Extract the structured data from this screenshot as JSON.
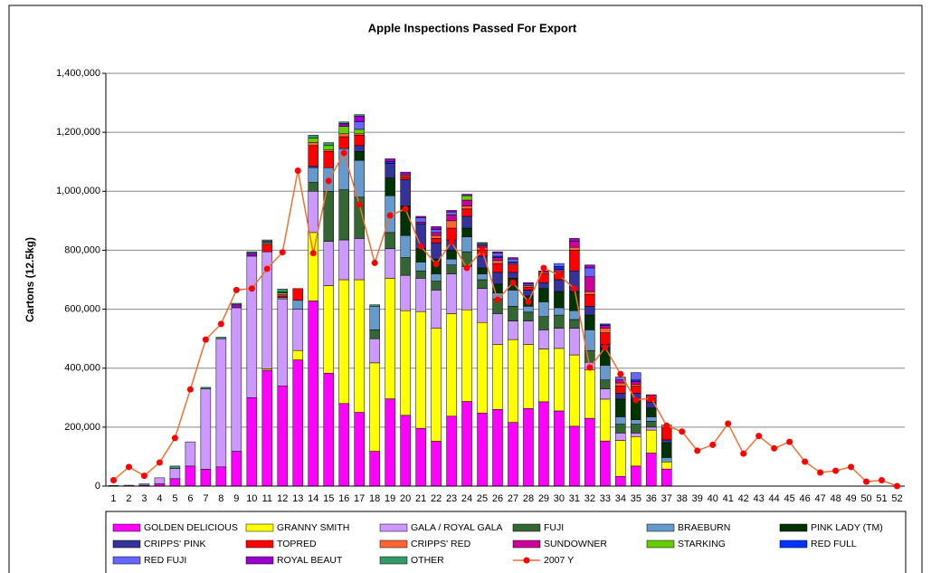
{
  "chart_data": {
    "type": "bar",
    "stacked": true,
    "title": "Apple Inspections Passed For Export",
    "y_label": "Cartons (12.5kg)",
    "categories": [
      "1",
      "2",
      "3",
      "4",
      "5",
      "6",
      "7",
      "8",
      "9",
      "10",
      "11",
      "12",
      "13",
      "14",
      "15",
      "16",
      "17",
      "18",
      "19",
      "20",
      "21",
      "22",
      "23",
      "24",
      "25",
      "26",
      "27",
      "28",
      "29",
      "30",
      "31",
      "32",
      "33",
      "34",
      "35",
      "36",
      "37",
      "38",
      "39",
      "40",
      "41",
      "42",
      "43",
      "44",
      "45",
      "46",
      "47",
      "48",
      "49",
      "50",
      "51",
      "52"
    ],
    "ylim": [
      0,
      1400000
    ],
    "yticks": [
      0,
      {
        "value": 200000,
        "label": "200,000"
      },
      {
        "value": 400000,
        "label": "400,000"
      },
      {
        "value": 600000,
        "label": "600,000"
      },
      {
        "value": 800000,
        "label": "800,000"
      },
      {
        "value": 1000000,
        "label": "1,000,000"
      },
      {
        "value": 1200000,
        "label": "1,200,000"
      },
      {
        "value": 1400000,
        "label": "1,400,000"
      }
    ],
    "grid": true,
    "legend": "bottom",
    "series": [
      {
        "name": "GOLDEN DELICIOUS",
        "color": "#ff00ff",
        "values": [
          2000,
          1000,
          3000,
          8000,
          25000,
          68000,
          57000,
          65000,
          118000,
          300000,
          393000,
          340000,
          428000,
          628000,
          383000,
          280000,
          250000,
          118000,
          296000,
          240000,
          196000,
          152000,
          237000,
          287000,
          248000,
          260000,
          216000,
          263000,
          286000,
          255000,
          203000,
          230000,
          153000,
          33000,
          68000,
          112000,
          58000,
          0,
          0,
          0,
          0,
          0,
          0,
          0,
          0,
          0,
          0,
          0,
          0,
          0,
          0,
          0
        ]
      },
      {
        "name": "GRANNY SMITH",
        "color": "#ffff00",
        "values": [
          0,
          0,
          0,
          0,
          0,
          0,
          0,
          0,
          0,
          0,
          5000,
          0,
          32000,
          232000,
          297000,
          420000,
          450000,
          300000,
          409000,
          355000,
          396000,
          383000,
          348000,
          311000,
          307000,
          220000,
          281000,
          217000,
          179000,
          212000,
          242000,
          165000,
          142000,
          122000,
          100000,
          78000,
          24000,
          0,
          0,
          0,
          0,
          0,
          0,
          0,
          0,
          0,
          0,
          0,
          0,
          0,
          0,
          0
        ]
      },
      {
        "name": "GALA / ROYAL GALA",
        "color": "#cc99ff",
        "values": [
          0,
          2000,
          5000,
          20000,
          35000,
          82000,
          273000,
          435000,
          487000,
          480000,
          397000,
          295000,
          140000,
          140000,
          150000,
          135000,
          140000,
          82000,
          100000,
          120000,
          113000,
          130000,
          135000,
          147000,
          115000,
          105000,
          63000,
          80000,
          65000,
          68000,
          90000,
          25000,
          35000,
          25000,
          12000,
          10000,
          0,
          0,
          0,
          0,
          0,
          0,
          0,
          0,
          0,
          0,
          0,
          0,
          0,
          0,
          0,
          0
        ]
      },
      {
        "name": "FUJI",
        "color": "#336633",
        "values": [
          0,
          0,
          0,
          0,
          0,
          0,
          0,
          0,
          0,
          0,
          0,
          0,
          0,
          30000,
          170000,
          170000,
          140000,
          30000,
          55000,
          60000,
          25000,
          30000,
          30000,
          50000,
          30000,
          50000,
          50000,
          30000,
          45000,
          45000,
          30000,
          40000,
          30000,
          30000,
          30000,
          20000,
          0,
          0,
          0,
          0,
          0,
          0,
          0,
          0,
          0,
          0,
          0,
          0,
          0,
          0,
          0,
          0
        ]
      },
      {
        "name": "BRAEBURN",
        "color": "#6699cc",
        "values": [
          0,
          0,
          0,
          0,
          0,
          0,
          0,
          0,
          0,
          0,
          0,
          5000,
          30000,
          50000,
          80000,
          140000,
          125000,
          80000,
          125000,
          75000,
          30000,
          25000,
          20000,
          50000,
          20000,
          20000,
          55000,
          20000,
          50000,
          25000,
          30000,
          70000,
          50000,
          25000,
          15000,
          15000,
          15000,
          0,
          0,
          0,
          0,
          0,
          0,
          0,
          0,
          0,
          0,
          0,
          0,
          0,
          0,
          0
        ]
      },
      {
        "name": "PINK LADY (TM)",
        "color": "#003300",
        "values": [
          0,
          0,
          0,
          0,
          0,
          0,
          0,
          0,
          0,
          0,
          0,
          0,
          0,
          0,
          0,
          0,
          30000,
          0,
          60000,
          100000,
          45000,
          50000,
          30000,
          30000,
          20000,
          30000,
          40000,
          35000,
          45000,
          55000,
          65000,
          50000,
          60000,
          60000,
          70000,
          30000,
          50000,
          0,
          0,
          0,
          0,
          0,
          0,
          0,
          0,
          0,
          0,
          0,
          0,
          0,
          0,
          0
        ]
      },
      {
        "name": "CRIPPS' PINK",
        "color": "#333399",
        "values": [
          0,
          0,
          0,
          0,
          0,
          0,
          0,
          0,
          0,
          0,
          0,
          0,
          0,
          5000,
          0,
          0,
          20000,
          0,
          50000,
          90000,
          85000,
          55000,
          35000,
          40000,
          40000,
          40000,
          20000,
          20000,
          20000,
          40000,
          70000,
          30000,
          10000,
          20000,
          20000,
          20000,
          10000,
          0,
          0,
          0,
          0,
          0,
          0,
          0,
          0,
          0,
          0,
          0,
          0,
          0,
          0,
          0
        ]
      },
      {
        "name": "TOPRED",
        "color": "#ff0000",
        "values": [
          0,
          0,
          0,
          0,
          0,
          0,
          0,
          0,
          0,
          0,
          25000,
          5000,
          40000,
          70000,
          55000,
          40000,
          35000,
          0,
          0,
          10000,
          0,
          15000,
          40000,
          25000,
          20000,
          30000,
          25000,
          10000,
          30000,
          25000,
          70000,
          40000,
          40000,
          25000,
          25000,
          15000,
          40000,
          0,
          0,
          0,
          0,
          0,
          0,
          0,
          0,
          0,
          0,
          0,
          0,
          0,
          0,
          0
        ]
      },
      {
        "name": "CRIPPS' RED",
        "color": "#ff6633",
        "values": [
          0,
          0,
          0,
          0,
          0,
          0,
          0,
          0,
          0,
          0,
          0,
          5000,
          0,
          10000,
          5000,
          10000,
          5000,
          0,
          0,
          5000,
          0,
          10000,
          25000,
          10000,
          10000,
          10000,
          5000,
          5000,
          5000,
          5000,
          10000,
          10000,
          15000,
          10000,
          5000,
          5000,
          10000,
          0,
          0,
          0,
          0,
          0,
          0,
          0,
          0,
          0,
          0,
          0,
          0,
          0,
          0,
          0
        ]
      },
      {
        "name": "SUNDOWNER",
        "color": "#cc0099",
        "values": [
          0,
          0,
          0,
          0,
          0,
          0,
          0,
          0,
          0,
          0,
          0,
          0,
          0,
          0,
          0,
          0,
          0,
          0,
          0,
          0,
          5000,
          10000,
          20000,
          20000,
          5000,
          10000,
          0,
          0,
          5000,
          5000,
          20000,
          50000,
          10000,
          10000,
          10000,
          5000,
          0,
          0,
          0,
          0,
          0,
          0,
          0,
          0,
          0,
          0,
          0,
          0,
          0,
          0,
          0,
          0
        ]
      },
      {
        "name": "STARKING",
        "color": "#66cc00",
        "values": [
          0,
          0,
          0,
          0,
          0,
          0,
          0,
          0,
          0,
          0,
          5000,
          5000,
          0,
          15000,
          15000,
          25000,
          15000,
          0,
          0,
          0,
          0,
          0,
          0,
          15000,
          3000,
          0,
          0,
          0,
          0,
          0,
          0,
          0,
          0,
          0,
          0,
          0,
          0,
          0,
          0,
          0,
          0,
          0,
          0,
          0,
          0,
          0,
          0,
          0,
          0,
          0,
          0,
          0
        ]
      },
      {
        "name": "RED FULL",
        "color": "#0033ff",
        "values": [
          0,
          0,
          0,
          0,
          0,
          0,
          0,
          0,
          0,
          0,
          0,
          0,
          0,
          0,
          0,
          0,
          0,
          0,
          5000,
          0,
          0,
          0,
          0,
          0,
          0,
          5000,
          5000,
          0,
          0,
          10000,
          0,
          0,
          5000,
          0,
          5000,
          0,
          0,
          0,
          0,
          0,
          0,
          0,
          0,
          0,
          0,
          0,
          0,
          0,
          0,
          0,
          0,
          0
        ]
      },
      {
        "name": "RED FUJI",
        "color": "#6666ff",
        "values": [
          0,
          0,
          0,
          0,
          0,
          0,
          0,
          0,
          0,
          0,
          0,
          0,
          0,
          0,
          0,
          0,
          25000,
          0,
          0,
          0,
          15000,
          10000,
          10000,
          0,
          5000,
          10000,
          10000,
          5000,
          0,
          10000,
          0,
          30000,
          0,
          10000,
          25000,
          0,
          0,
          0,
          0,
          0,
          0,
          0,
          0,
          0,
          0,
          0,
          0,
          0,
          0,
          0,
          0,
          0
        ]
      },
      {
        "name": "ROYAL BEAUT",
        "color": "#9900cc",
        "values": [
          0,
          0,
          0,
          0,
          0,
          0,
          0,
          0,
          10000,
          10000,
          5000,
          3000,
          0,
          0,
          0,
          10000,
          20000,
          0,
          10000,
          10000,
          5000,
          10000,
          5000,
          5000,
          0,
          5000,
          5000,
          5000,
          0,
          0,
          10000,
          10000,
          0,
          0,
          0,
          0,
          0,
          0,
          0,
          0,
          0,
          0,
          0,
          0,
          0,
          0,
          0,
          0,
          0,
          0,
          0,
          0
        ]
      },
      {
        "name": "OTHER",
        "color": "#339966",
        "values": [
          0,
          0,
          0,
          0,
          8000,
          0,
          5000,
          5000,
          5000,
          5000,
          5000,
          10000,
          0,
          10000,
          10000,
          5000,
          5000,
          5000,
          0,
          0,
          0,
          0,
          0,
          0,
          3000,
          0,
          0,
          0,
          0,
          0,
          0,
          0,
          0,
          0,
          0,
          0,
          0,
          0,
          0,
          0,
          0,
          0,
          0,
          0,
          0,
          0,
          0,
          0,
          0,
          0,
          0,
          0
        ]
      },
      {
        "name": "2007 Y",
        "type": "line",
        "color": "#ff0000",
        "line_color": "#f07030",
        "values": [
          20000,
          65000,
          35000,
          80000,
          163000,
          328000,
          497000,
          550000,
          665000,
          670000,
          737000,
          793000,
          1070000,
          790000,
          1035000,
          1130000,
          955000,
          757000,
          918000,
          940000,
          813000,
          753000,
          828000,
          740000,
          800000,
          632000,
          690000,
          625000,
          740000,
          715000,
          670000,
          402000,
          470000,
          380000,
          292000,
          298000,
          205000,
          185000,
          120000,
          140000,
          212000,
          110000,
          170000,
          128000,
          150000,
          83000,
          46000,
          52000,
          65000,
          15000,
          20000,
          0
        ]
      }
    ]
  }
}
